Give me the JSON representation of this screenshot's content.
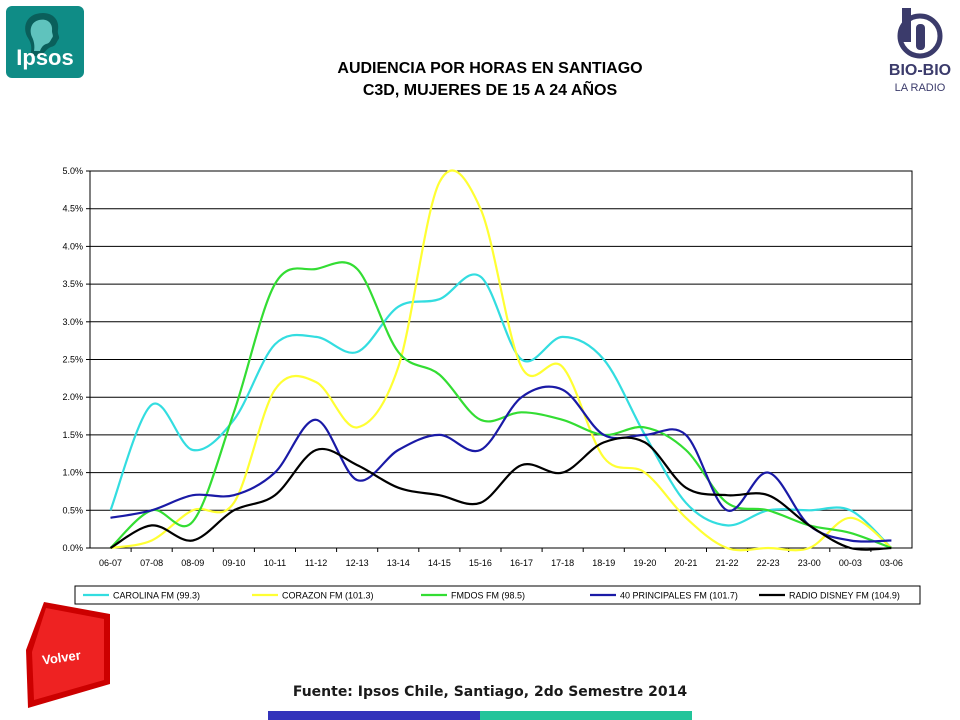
{
  "title": {
    "line1": "AUDIENCIA POR HORAS EN SANTIAGO",
    "line2": "C3D, MUJERES DE 15 A 24 AÑOS"
  },
  "logos": {
    "ipsos": "Ipsos",
    "biobio": "BIO-BIO",
    "biobio_sub": "LA RADIO"
  },
  "volver_label": "Volver",
  "source": "Fuente: Ipsos Chile, Santiago, 2do Semestre 2014",
  "colors": {
    "ipsos_teal": "#0f8c86",
    "volver_red": "#dd1111",
    "bar_blue": "#3333bb",
    "bar_green": "#22c49a"
  },
  "chart_data": {
    "type": "line",
    "categories": [
      "06-07",
      "07-08",
      "08-09",
      "09-10",
      "10-11",
      "11-12",
      "12-13",
      "13-14",
      "14-15",
      "15-16",
      "16-17",
      "17-18",
      "18-19",
      "19-20",
      "20-21",
      "21-22",
      "22-23",
      "23-00",
      "00-03",
      "03-06"
    ],
    "y_ticks": [
      "0.0%",
      "0.5%",
      "1.0%",
      "1.5%",
      "2.0%",
      "2.5%",
      "3.0%",
      "3.5%",
      "4.0%",
      "4.5%",
      "5.0%"
    ],
    "ylim": [
      0,
      5.0
    ],
    "grid": true,
    "legend_position": "bottom",
    "series": [
      {
        "name": "CAROLINA FM (99.3)",
        "color": "#33dde0",
        "values": [
          0.5,
          1.9,
          1.3,
          1.7,
          2.7,
          2.8,
          2.6,
          3.2,
          3.3,
          3.6,
          2.5,
          2.8,
          2.5,
          1.5,
          0.6,
          0.3,
          0.5,
          0.5,
          0.5,
          0.0
        ]
      },
      {
        "name": "CORAZON FM (101.3)",
        "color": "#ffff33",
        "values": [
          0.0,
          0.1,
          0.5,
          0.6,
          2.1,
          2.2,
          1.6,
          2.4,
          4.85,
          4.5,
          2.4,
          2.4,
          1.2,
          1.0,
          0.4,
          0.0,
          0.0,
          0.0,
          0.4,
          0.0
        ]
      },
      {
        "name": "FMDOS FM (98.5)",
        "color": "#33dd33",
        "values": [
          0.0,
          0.5,
          0.35,
          1.8,
          3.5,
          3.7,
          3.7,
          2.6,
          2.3,
          1.7,
          1.8,
          1.7,
          1.5,
          1.6,
          1.3,
          0.6,
          0.5,
          0.3,
          0.2,
          0.0
        ]
      },
      {
        "name": "40 PRINCIPALES FM (101.7)",
        "color": "#1a1aa6",
        "values": [
          0.4,
          0.5,
          0.7,
          0.7,
          1.0,
          1.7,
          0.9,
          1.3,
          1.5,
          1.3,
          2.0,
          2.1,
          1.5,
          1.5,
          1.5,
          0.5,
          1.0,
          0.3,
          0.1,
          0.1
        ]
      },
      {
        "name": "RADIO DISNEY FM (104.9)",
        "color": "#000000",
        "values": [
          0.0,
          0.3,
          0.1,
          0.5,
          0.7,
          1.3,
          1.1,
          0.8,
          0.7,
          0.6,
          1.1,
          1.0,
          1.4,
          1.4,
          0.8,
          0.7,
          0.7,
          0.3,
          0.0,
          0.0
        ]
      }
    ]
  }
}
